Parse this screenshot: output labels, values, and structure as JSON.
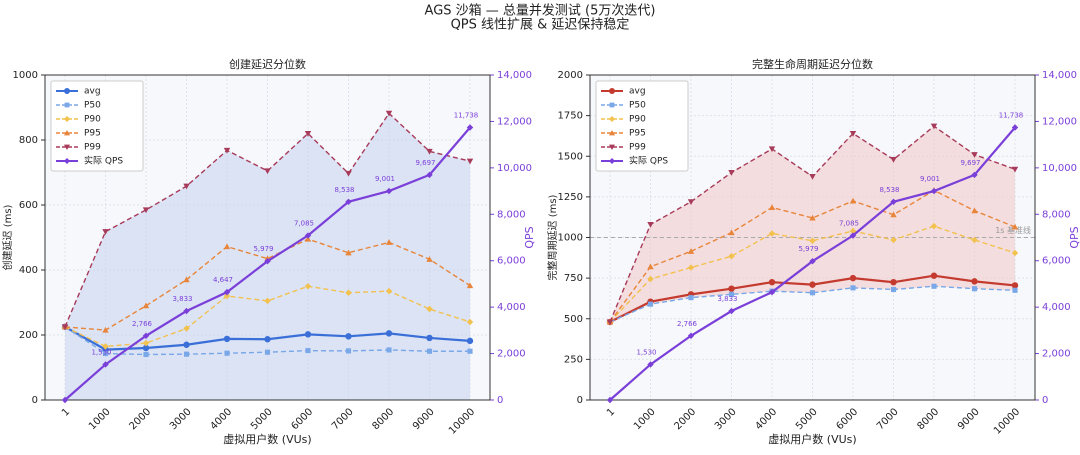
{
  "figure_title": [
    "AGS 沙箱 — 总量并发测试 (5万次迭代)",
    "QPS 线性扩展 & 延迟保持稳定"
  ],
  "chart_data": [
    {
      "type": "line",
      "title": "创建延迟分位数",
      "xlabel": "虚拟用户数 (VUs)",
      "ylabel": "创建延迟 (ms)",
      "y2label": "QPS",
      "categories": [
        "1",
        "1000",
        "2000",
        "3000",
        "4000",
        "5000",
        "6000",
        "7000",
        "8000",
        "9000",
        "10000"
      ],
      "ylim": [
        0,
        1000
      ],
      "yticks": [
        0,
        200,
        400,
        600,
        800,
        1000
      ],
      "y2lim": [
        0,
        14000
      ],
      "y2ticks": [
        0,
        {
          "value": 2000,
          "label": "2,000"
        },
        {
          "value": 4000,
          "label": "4,000"
        },
        {
          "value": 6000,
          "label": "6,000"
        },
        {
          "value": 8000,
          "label": "8,000"
        },
        {
          "value": 10000,
          "label": "10,000"
        },
        {
          "value": 12000,
          "label": "12,000"
        },
        {
          "value": 14000,
          "label": "14,000"
        }
      ],
      "grid": true,
      "legend": "upper-left",
      "fill_color": "#c9d6f2",
      "series": [
        {
          "name": "avg",
          "color": "#3a6fd8",
          "dash": "solid",
          "marker": "circle",
          "values": [
            225,
            155,
            160,
            170,
            188,
            187,
            202,
            196,
            205,
            191,
            182
          ]
        },
        {
          "name": "P50",
          "color": "#7aa7e8",
          "dash": "dashed",
          "marker": "square",
          "values": [
            225,
            143,
            140,
            141,
            144,
            147,
            152,
            151,
            154,
            150,
            150
          ]
        },
        {
          "name": "P90",
          "color": "#f2c14e",
          "dash": "dashed",
          "marker": "diamond",
          "values": [
            225,
            165,
            175,
            220,
            320,
            305,
            350,
            330,
            335,
            280,
            240
          ]
        },
        {
          "name": "P95",
          "color": "#e8853a",
          "dash": "dashed",
          "marker": "triangle",
          "values": [
            225,
            215,
            290,
            370,
            472,
            435,
            495,
            453,
            485,
            433,
            352
          ]
        },
        {
          "name": "P99",
          "color": "#a83a5a",
          "dash": "dashed",
          "marker": "triangle-down",
          "values": [
            225,
            518,
            585,
            658,
            768,
            705,
            820,
            697,
            882,
            765,
            735
          ]
        },
        {
          "name": "实际 QPS",
          "color": "#7b3fd9",
          "dash": "solid",
          "marker": "diamond",
          "axis": "y2",
          "values": [
            0,
            1530,
            2766,
            3833,
            4647,
            5979,
            7085,
            8538,
            9001,
            9697,
            11738
          ],
          "value_labels": [
            null,
            "1,530",
            "2,766",
            "3,833",
            "4,647",
            "5,979",
            "7,085",
            "8,538",
            "9,001",
            "9,697",
            "11,738"
          ]
        }
      ]
    },
    {
      "type": "line",
      "title": "完整生命周期延迟分位数",
      "xlabel": "虚拟用户数 (VUs)",
      "ylabel": "完整周期延迟 (ms)",
      "y2label": "QPS",
      "categories": [
        "1",
        "1000",
        "2000",
        "3000",
        "4000",
        "5000",
        "6000",
        "7000",
        "8000",
        "9000",
        "10000"
      ],
      "ylim": [
        0,
        2000
      ],
      "yticks": [
        0,
        250,
        500,
        750,
        1000,
        1250,
        1500,
        1750,
        2000
      ],
      "y2lim": [
        0,
        14000
      ],
      "y2ticks": [
        0,
        {
          "value": 2000,
          "label": "2,000"
        },
        {
          "value": 4000,
          "label": "4,000"
        },
        {
          "value": 6000,
          "label": "6,000"
        },
        {
          "value": 8000,
          "label": "8,000"
        },
        {
          "value": 10000,
          "label": "10,000"
        },
        {
          "value": 12000,
          "label": "12,000"
        },
        {
          "value": 14000,
          "label": "14,000"
        }
      ],
      "grid": true,
      "legend": "upper-left",
      "fill_color": "#f2cccc",
      "hline": {
        "value": 1000,
        "label": "1s 基准线"
      },
      "series": [
        {
          "name": "avg",
          "color": "#c43a2e",
          "dash": "solid",
          "marker": "circle",
          "values": [
            480,
            605,
            650,
            685,
            725,
            710,
            750,
            725,
            765,
            730,
            705
          ]
        },
        {
          "name": "P50",
          "color": "#7aa7e8",
          "dash": "dashed",
          "marker": "square",
          "values": [
            480,
            590,
            630,
            650,
            670,
            660,
            690,
            680,
            700,
            685,
            675
          ]
        },
        {
          "name": "P90",
          "color": "#f2c14e",
          "dash": "dashed",
          "marker": "diamond",
          "values": [
            480,
            745,
            815,
            885,
            1025,
            980,
            1040,
            985,
            1070,
            985,
            905
          ]
        },
        {
          "name": "P95",
          "color": "#e8853a",
          "dash": "dashed",
          "marker": "triangle",
          "values": [
            480,
            820,
            915,
            1030,
            1185,
            1120,
            1225,
            1140,
            1290,
            1165,
            1065
          ]
        },
        {
          "name": "P99",
          "color": "#a83a5a",
          "dash": "dashed",
          "marker": "triangle-down",
          "values": [
            480,
            1080,
            1220,
            1400,
            1545,
            1375,
            1640,
            1480,
            1685,
            1510,
            1420
          ]
        },
        {
          "name": "实际 QPS",
          "color": "#7b3fd9",
          "dash": "solid",
          "marker": "diamond",
          "axis": "y2",
          "values": [
            0,
            1530,
            2766,
            3833,
            4647,
            5979,
            7085,
            8538,
            9001,
            9697,
            11738
          ],
          "value_labels": [
            null,
            "1,530",
            "2,766",
            "3,833",
            null,
            "5,979",
            "7,085",
            "8,538",
            "9,001",
            "9,697",
            "11,738"
          ]
        }
      ]
    }
  ]
}
